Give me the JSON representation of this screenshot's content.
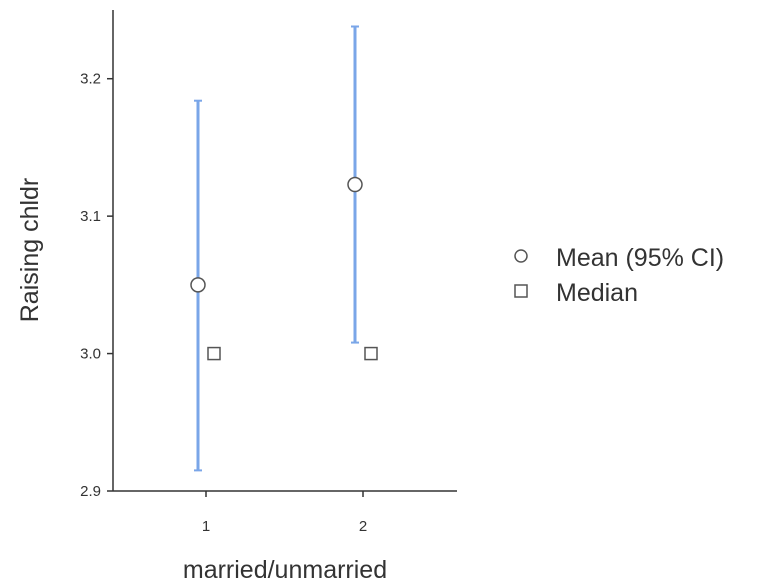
{
  "chart_data": {
    "type": "scatter",
    "xlabel": "married/unmarried",
    "ylabel": "Raising chldr",
    "categories": [
      "1",
      "2"
    ],
    "ylim": [
      2.9,
      3.25
    ],
    "yticks": [
      "2.9",
      "3.0",
      "3.1",
      "3.2"
    ],
    "grid": false,
    "legend_position": "right",
    "series": [
      {
        "name": "Mean (95% CI)",
        "marker": "circle",
        "values": [
          3.05,
          3.123
        ],
        "ci_low": [
          2.915,
          3.008
        ],
        "ci_high": [
          3.184,
          3.238
        ]
      },
      {
        "name": "Median",
        "marker": "square",
        "values": [
          3.0,
          3.0
        ]
      }
    ],
    "colors": {
      "ci": "#7aa6e8",
      "marker_stroke": "#555555",
      "axis": "#333333"
    }
  }
}
